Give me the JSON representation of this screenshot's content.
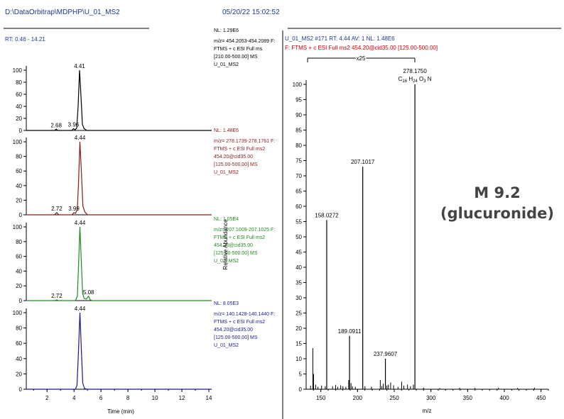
{
  "header": {
    "filepath": "D:\\DataOrbitrap\\MDPHP\\U_01_MS2",
    "datetime": "05/20/22 15:02:52"
  },
  "colors": {
    "trace1": "#000000",
    "trace2": "#8b1a1a",
    "trace3": "#1e8a1e",
    "trace4": "#1a1a8f",
    "header": "#1a3a8a",
    "filter_red": "#cc0000"
  },
  "annotation": {
    "line1": "M 9.2",
    "line2": "(glucuronide)"
  },
  "chart_data": [
    {
      "type": "line",
      "rt_range_label": "RT: 0.46 - 14.21",
      "ylabel": "Relative Abundance",
      "xlabel": "Time (min)",
      "xlim": [
        0.46,
        14.21
      ],
      "xticks": [
        2,
        4,
        6,
        8,
        10,
        12,
        14
      ],
      "yticks": [
        0,
        20,
        40,
        60,
        80,
        100
      ],
      "panels": [
        {
          "color": "#000000",
          "peak_rt": 4.41,
          "nl": "NL: 1.29E6",
          "info": [
            "m/z= 454.2053-454.2089 F:",
            "FTMS + c ESI Full ms",
            "[210.00-500.00] MS",
            "U_01_MS2"
          ],
          "peak_labels": [
            {
              "x": 4.41,
              "y": 100,
              "text": "4.41"
            },
            {
              "x": 2.68,
              "y": 2,
              "text": "2.68"
            },
            {
              "x": 3.96,
              "y": 3,
              "text": "3.96"
            }
          ],
          "points": [
            [
              0.46,
              0
            ],
            [
              2.55,
              0
            ],
            [
              2.68,
              2
            ],
            [
              2.8,
              0
            ],
            [
              3.85,
              0
            ],
            [
              3.96,
              3
            ],
            [
              4.08,
              1
            ],
            [
              4.2,
              4
            ],
            [
              4.3,
              38
            ],
            [
              4.41,
              100
            ],
            [
              4.52,
              55
            ],
            [
              4.62,
              10
            ],
            [
              4.75,
              3
            ],
            [
              4.95,
              0
            ],
            [
              14.21,
              0
            ]
          ]
        },
        {
          "color": "#8b1a1a",
          "peak_rt": 4.44,
          "nl": "NL: 1.48E6",
          "info": [
            "m/z= 278.1739-278.1761 F:",
            "FTMS + c ESI Full ms2",
            "454.20@cid35.00",
            "[125.00-500.00]  MS",
            "U_01_MS2"
          ],
          "peak_labels": [
            {
              "x": 4.44,
              "y": 100,
              "text": "4.44"
            },
            {
              "x": 2.72,
              "y": 3,
              "text": "2.72"
            },
            {
              "x": 3.99,
              "y": 3,
              "text": "3.99"
            }
          ],
          "points": [
            [
              0.46,
              0
            ],
            [
              2.55,
              0
            ],
            [
              2.72,
              3
            ],
            [
              2.88,
              0
            ],
            [
              3.85,
              0
            ],
            [
              3.99,
              3
            ],
            [
              4.12,
              2
            ],
            [
              4.25,
              8
            ],
            [
              4.34,
              45
            ],
            [
              4.44,
              100
            ],
            [
              4.55,
              58
            ],
            [
              4.66,
              12
            ],
            [
              4.8,
              4
            ],
            [
              5.0,
              0
            ],
            [
              14.21,
              0
            ]
          ]
        },
        {
          "color": "#1e8a1e",
          "peak_rt": 4.44,
          "nl": "NL: 1.05E4",
          "info": [
            "m/z= 207.1009-207.1025 F:",
            "FTMS + c ESI Full ms2",
            "454.20@cid35.00",
            "[125.00-500.00]  MS",
            "U_01_MS2"
          ],
          "peak_labels": [
            {
              "x": 4.44,
              "y": 100,
              "text": "4.44"
            },
            {
              "x": 2.72,
              "y": 1,
              "text": "2.72"
            },
            {
              "x": 5.08,
              "y": 6,
              "text": "5.08"
            }
          ],
          "points": [
            [
              0.46,
              0
            ],
            [
              2.6,
              0
            ],
            [
              2.72,
              1
            ],
            [
              2.85,
              0
            ],
            [
              4.1,
              0
            ],
            [
              4.25,
              6
            ],
            [
              4.34,
              48
            ],
            [
              4.44,
              100
            ],
            [
              4.54,
              55
            ],
            [
              4.64,
              10
            ],
            [
              4.75,
              3
            ],
            [
              4.9,
              2
            ],
            [
              5.08,
              6
            ],
            [
              5.2,
              1
            ],
            [
              5.35,
              0
            ],
            [
              14.21,
              0
            ]
          ]
        },
        {
          "color": "#1a1a8f",
          "peak_rt": 4.44,
          "nl": "NL: 8.05E3",
          "info": [
            "m/z= 140.1428-140.1440 F:",
            "FTMS + c ESI Full ms2",
            "454.20@cid35.00",
            "[125.00-500.00]  MS",
            "U_01_MS2"
          ],
          "peak_labels": [
            {
              "x": 4.44,
              "y": 100,
              "text": "4.44"
            }
          ],
          "points": [
            [
              0.46,
              0
            ],
            [
              4.1,
              0
            ],
            [
              4.22,
              5
            ],
            [
              4.32,
              45
            ],
            [
              4.44,
              100
            ],
            [
              4.55,
              50
            ],
            [
              4.65,
              8
            ],
            [
              4.78,
              1
            ],
            [
              4.95,
              0
            ],
            [
              14.21,
              0
            ]
          ]
        }
      ]
    },
    {
      "type": "bar",
      "title": "U_01_MS2 #171   RT: 4.44   AV: 1   NL: 1.48E6",
      "filter": "F: FTMS + c ESI Full ms2 454.20@cid35.00 [125.00-500.00]",
      "zoom_label": "x25",
      "xlabel": "m/z",
      "xlim": [
        130,
        460
      ],
      "xticks": [
        150,
        200,
        250,
        300,
        350,
        400,
        450
      ],
      "ylim": [
        0,
        100
      ],
      "yticks": [
        0,
        5,
        10,
        15,
        20,
        25,
        30,
        35,
        40,
        45,
        50,
        55,
        60,
        65,
        70,
        75,
        80,
        85,
        90,
        95,
        100
      ],
      "formula": {
        "c": "16",
        "h": "24",
        "o": "3"
      },
      "labeled_peaks": [
        {
          "mz": 278.175,
          "y": 100,
          "text": "278.1750"
        },
        {
          "mz": 207.1017,
          "y": 73,
          "text": "207.1017"
        },
        {
          "mz": 158.0272,
          "y": 55.5,
          "text": "158.0272"
        },
        {
          "mz": 189.0911,
          "y": 17.5,
          "text": "189.0911"
        },
        {
          "mz": 237.9607,
          "y": 10,
          "text": "237.9607"
        }
      ],
      "minor_peaks": [
        {
          "mz": 136.0,
          "y": 1.2
        },
        {
          "mz": 139.1,
          "y": 13.5
        },
        {
          "mz": 140.1,
          "y": 5
        },
        {
          "mz": 143.0,
          "y": 1.5
        },
        {
          "mz": 146.1,
          "y": 0.8
        },
        {
          "mz": 151.0,
          "y": 1.2
        },
        {
          "mz": 156.0,
          "y": 1
        },
        {
          "mz": 166.0,
          "y": 1
        },
        {
          "mz": 170.1,
          "y": 1.4
        },
        {
          "mz": 173.0,
          "y": 0.8
        },
        {
          "mz": 177.1,
          "y": 1.3
        },
        {
          "mz": 180.1,
          "y": 1
        },
        {
          "mz": 184.1,
          "y": 0.8
        },
        {
          "mz": 188.0,
          "y": 3
        },
        {
          "mz": 191.1,
          "y": 2
        },
        {
          "mz": 193.0,
          "y": 1
        },
        {
          "mz": 197.0,
          "y": 0.8
        },
        {
          "mz": 210.1,
          "y": 1
        },
        {
          "mz": 219.0,
          "y": 0.8
        },
        {
          "mz": 231.0,
          "y": 3
        },
        {
          "mz": 233.1,
          "y": 1
        },
        {
          "mz": 235.0,
          "y": 1.8
        },
        {
          "mz": 240.0,
          "y": 1.2
        },
        {
          "mz": 242.0,
          "y": 1.5
        },
        {
          "mz": 245.1,
          "y": 2.2
        },
        {
          "mz": 249.1,
          "y": 1.3
        },
        {
          "mz": 255.1,
          "y": 0.8
        },
        {
          "mz": 260.1,
          "y": 2.5
        },
        {
          "mz": 263.1,
          "y": 1.2
        },
        {
          "mz": 268.1,
          "y": 1.5
        },
        {
          "mz": 272.1,
          "y": 1
        },
        {
          "mz": 276.1,
          "y": 1.5
        },
        {
          "mz": 290.0,
          "y": 0.5
        },
        {
          "mz": 312.0,
          "y": 0.4
        },
        {
          "mz": 339.0,
          "y": 0.5
        },
        {
          "mz": 360.0,
          "y": 0.4
        },
        {
          "mz": 392.0,
          "y": 0.5
        },
        {
          "mz": 418.0,
          "y": 0.4
        },
        {
          "mz": 441.0,
          "y": 0.5
        }
      ]
    }
  ]
}
